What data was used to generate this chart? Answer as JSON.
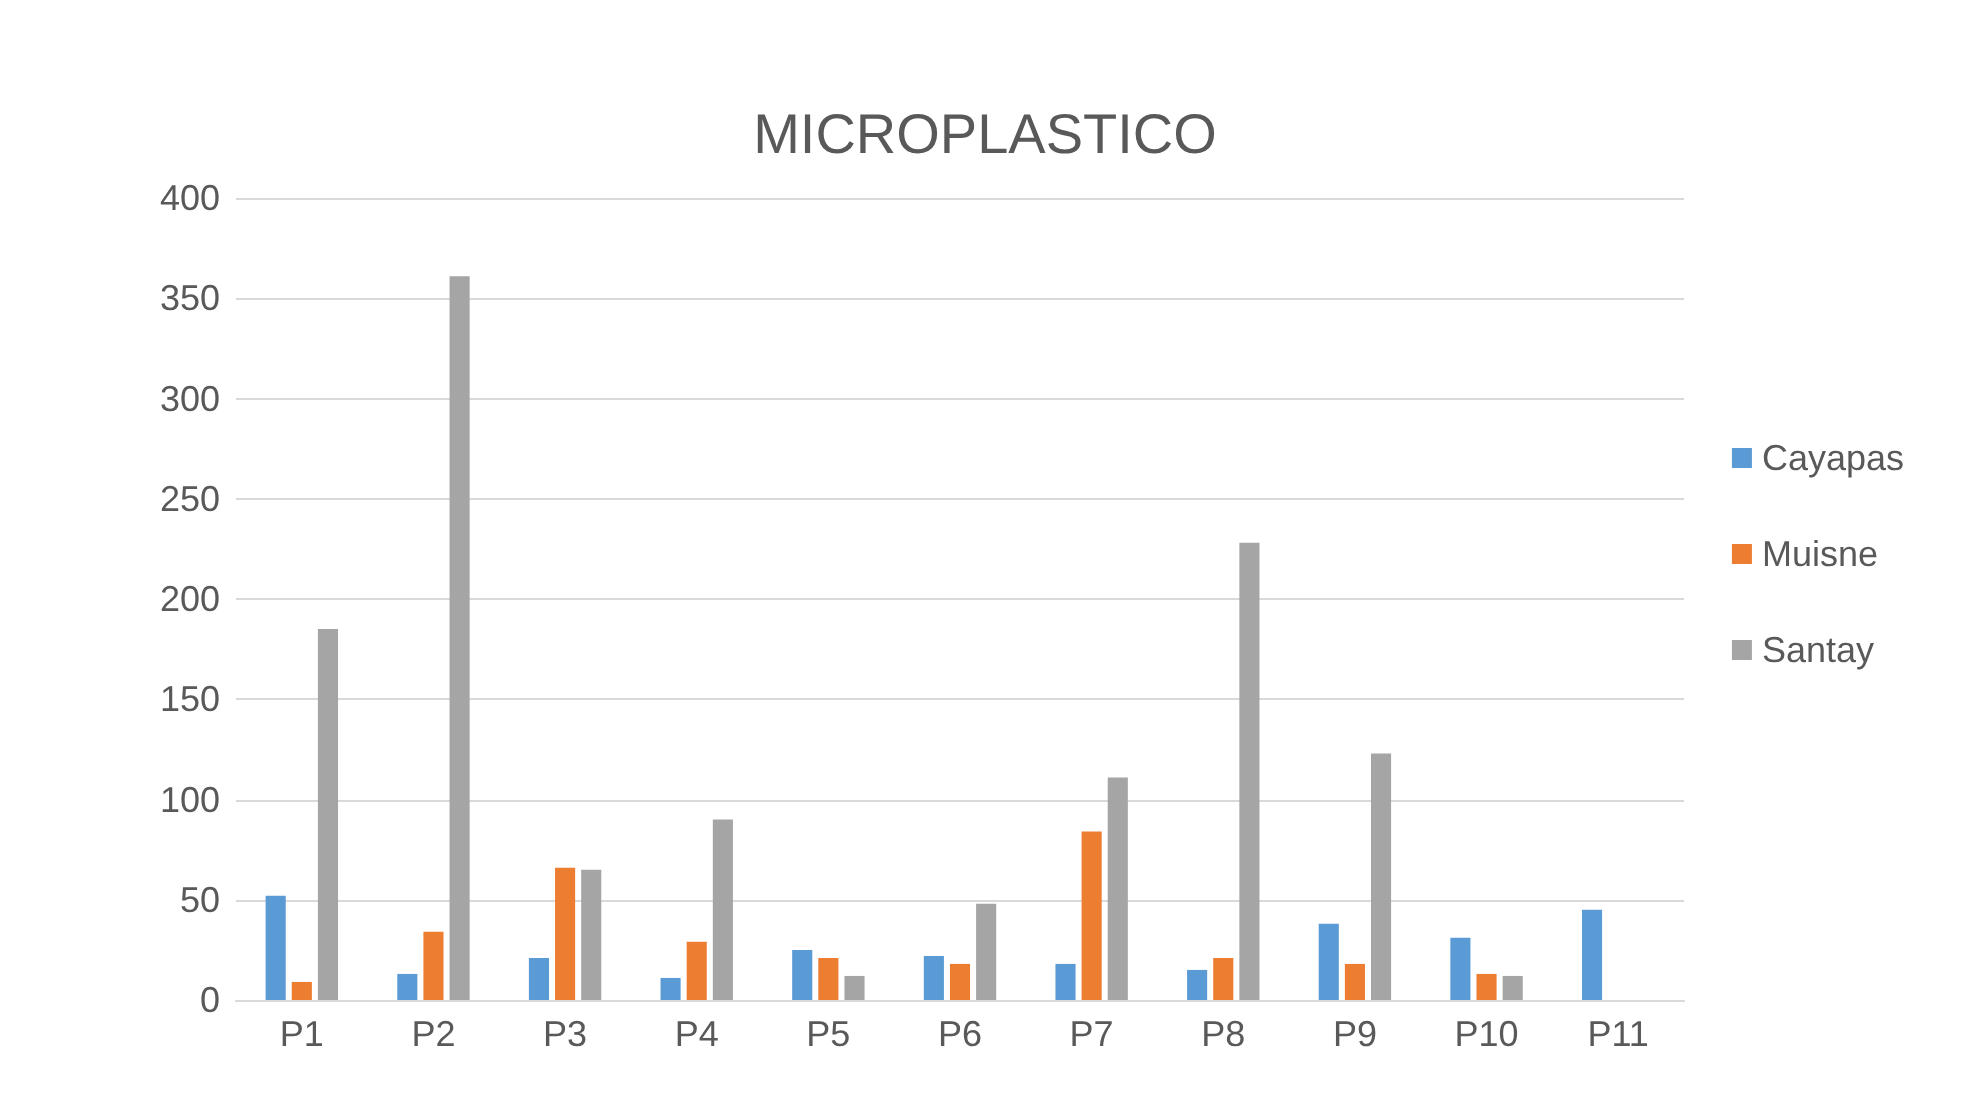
{
  "chart_data": {
    "type": "bar",
    "title": "MICROPLASTICO",
    "categories": [
      "P1",
      "P2",
      "P3",
      "P4",
      "P5",
      "P6",
      "P7",
      "P8",
      "P9",
      "P10",
      "P11"
    ],
    "series": [
      {
        "name": "Cayapas",
        "color": "#5b9bd5",
        "values": [
          52,
          13,
          21,
          11,
          25,
          22,
          18,
          15,
          38,
          31,
          45
        ]
      },
      {
        "name": "Muisne",
        "color": "#ed7d31",
        "values": [
          9,
          34,
          66,
          29,
          21,
          18,
          84,
          21,
          18,
          13,
          null
        ]
      },
      {
        "name": "Santay",
        "color": "#a5a5a5",
        "values": [
          185,
          361,
          65,
          90,
          12,
          48,
          111,
          228,
          123,
          12,
          null
        ]
      }
    ],
    "ylim": [
      0,
      400
    ],
    "yticks": [
      0,
      50,
      100,
      150,
      200,
      250,
      300,
      350,
      400
    ],
    "grid": "y",
    "legend": "right"
  }
}
